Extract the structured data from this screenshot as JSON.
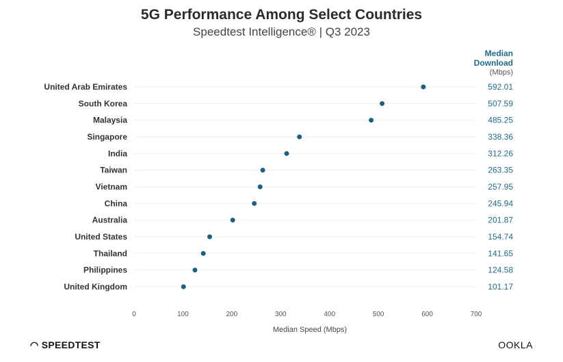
{
  "chart_data": {
    "type": "scatter",
    "title": "5G Performance Among Select Countries",
    "subtitle": "Speedtest Intelligence® | Q3 2023",
    "value_column_header": {
      "line1": "Median",
      "line2": "Download",
      "unit": "(Mbps)"
    },
    "categories": [
      "United Arab Emirates",
      "South Korea",
      "Malaysia",
      "Singapore",
      "India",
      "Taiwan",
      "Vietnam",
      "China",
      "Australia",
      "United States",
      "Thailand",
      "Philippines",
      "United Kingdom"
    ],
    "values": [
      592.01,
      507.59,
      485.25,
      338.36,
      312.26,
      263.35,
      257.95,
      245.94,
      201.87,
      154.74,
      141.65,
      124.58,
      101.17
    ],
    "value_labels": [
      "592.01",
      "507.59",
      "485.25",
      "338.36",
      "312.26",
      "263.35",
      "257.95",
      "245.94",
      "201.87",
      "154.74",
      "141.65",
      "124.58",
      "101.17"
    ],
    "xlabel": "Median Speed (Mbps)",
    "xlim": [
      0,
      700
    ],
    "xticks": [
      "0",
      "100",
      "200",
      "300",
      "400",
      "500",
      "600",
      "700"
    ],
    "grid": true,
    "colors": {
      "dot": "#1d5f80",
      "value_text": "#1d6a8a"
    }
  },
  "branding": {
    "left": "SPEEDTEST",
    "right": "OOKLA"
  }
}
